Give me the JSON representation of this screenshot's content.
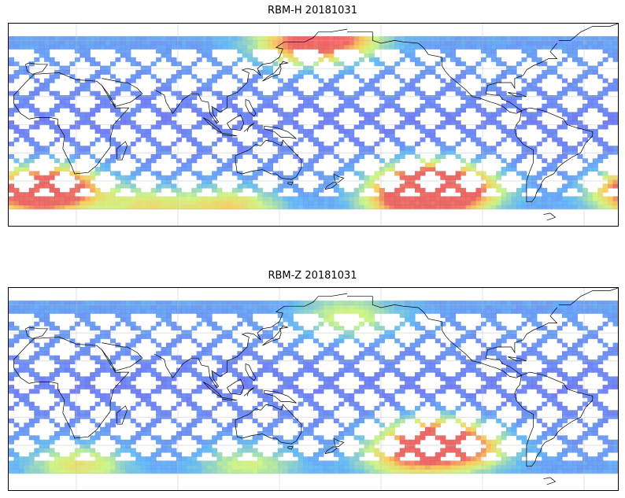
{
  "panels": [
    {
      "id": "rbm-h",
      "title": "RBM-H 20181031",
      "hot_regions": [
        {
          "lon": 220,
          "lat": -55,
          "level": 0.95
        },
        {
          "lon": 240,
          "lat": -48,
          "level": 0.85
        },
        {
          "lon": 225,
          "lat": -40,
          "level": 0.7
        },
        {
          "lon": 355,
          "lat": -50,
          "level": 0.9
        },
        {
          "lon": 5,
          "lat": -45,
          "level": 0.75
        },
        {
          "lon": 170,
          "lat": 60,
          "level": 0.7
        },
        {
          "lon": 150,
          "lat": 55,
          "level": 0.55
        },
        {
          "lon": 110,
          "lat": -60,
          "level": 0.5
        },
        {
          "lon": 60,
          "lat": -60,
          "level": 0.45
        }
      ]
    },
    {
      "id": "rbm-z",
      "title": "RBM-Z 20181031",
      "hot_regions": [
        {
          "lon": 230,
          "lat": -35,
          "level": 0.8
        },
        {
          "lon": 245,
          "lat": -45,
          "level": 0.65
        },
        {
          "lon": 215,
          "lat": -50,
          "level": 0.55
        },
        {
          "lon": 20,
          "lat": -55,
          "level": 0.45
        },
        {
          "lon": 180,
          "lat": 50,
          "level": 0.4
        },
        {
          "lon": 120,
          "lat": -55,
          "level": 0.35
        }
      ]
    }
  ],
  "map_extent": {
    "lon_min": -20,
    "lon_max": 340,
    "lat_min": -72,
    "lat_max": 72
  },
  "gridlines": {
    "lon_step": 60,
    "lat_step": 20
  },
  "colors": {
    "low": "#6a5cf0",
    "mid": "#5ab4f5",
    "warm": "#c8f580",
    "hot": "#e85a5a",
    "land": "#000000"
  }
}
